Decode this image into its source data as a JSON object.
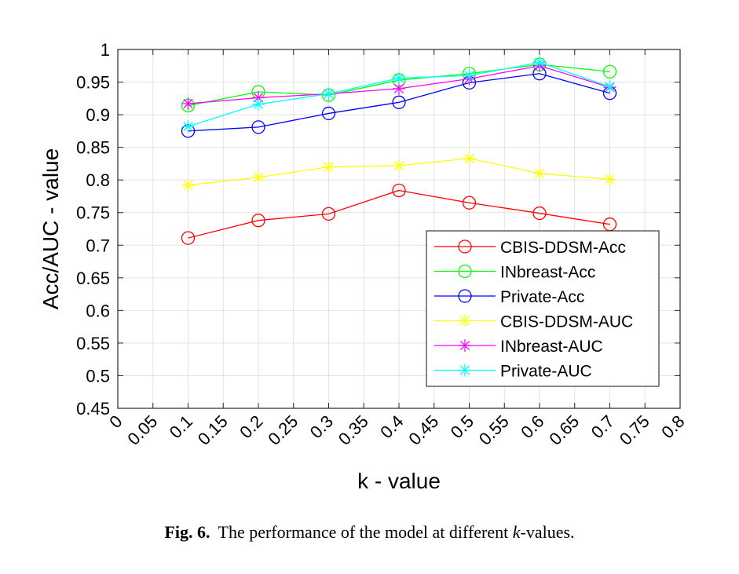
{
  "chart_data": {
    "type": "line",
    "xlabel": "k - value",
    "ylabel": "Acc/AUC - value",
    "xlim": [
      0,
      0.8
    ],
    "ylim": [
      0.45,
      1
    ],
    "x_ticks": [
      "0",
      "0.05",
      "0.1",
      "0.15",
      "0.2",
      "0.25",
      "0.3",
      "0.35",
      "0.4",
      "0.45",
      "0.5",
      "0.55",
      "0.6",
      "0.65",
      "0.7",
      "0.75",
      "0.8"
    ],
    "y_ticks": [
      "0.45",
      "0.5",
      "0.55",
      "0.6",
      "0.65",
      "0.7",
      "0.75",
      "0.8",
      "0.85",
      "0.9",
      "0.95",
      "1"
    ],
    "grid": true,
    "legend_position": "lower-right",
    "x": [
      0.1,
      0.2,
      0.3,
      0.4,
      0.5,
      0.6,
      0.7
    ],
    "series": [
      {
        "name": "CBIS-DDSM-Acc",
        "marker": "circle",
        "color": "#ff0000",
        "values": [
          0.711,
          0.738,
          0.748,
          0.784,
          0.765,
          0.749,
          0.732
        ]
      },
      {
        "name": "INbreast-Acc",
        "marker": "circle",
        "color": "#00ff00",
        "values": [
          0.914,
          0.935,
          0.93,
          0.953,
          0.963,
          0.977,
          0.966
        ]
      },
      {
        "name": "Private-Acc",
        "marker": "circle",
        "color": "#0000ff",
        "values": [
          0.875,
          0.881,
          0.902,
          0.919,
          0.949,
          0.963,
          0.933
        ]
      },
      {
        "name": "CBIS-DDSM-AUC",
        "marker": "star",
        "color": "#ffff00",
        "values": [
          0.792,
          0.804,
          0.82,
          0.822,
          0.833,
          0.81,
          0.801
        ]
      },
      {
        "name": "INbreast-AUC",
        "marker": "star",
        "color": "#ff00ff",
        "values": [
          0.917,
          0.926,
          0.932,
          0.94,
          0.955,
          0.975,
          0.942
        ]
      },
      {
        "name": "Private-AUC",
        "marker": "star",
        "color": "#00ffff",
        "values": [
          0.882,
          0.916,
          0.932,
          0.956,
          0.96,
          0.98,
          0.943
        ]
      }
    ]
  },
  "caption": {
    "label": "Fig. 6.",
    "text_before": "The performance of the model at different ",
    "text_italic": "k",
    "text_after": "-values."
  }
}
